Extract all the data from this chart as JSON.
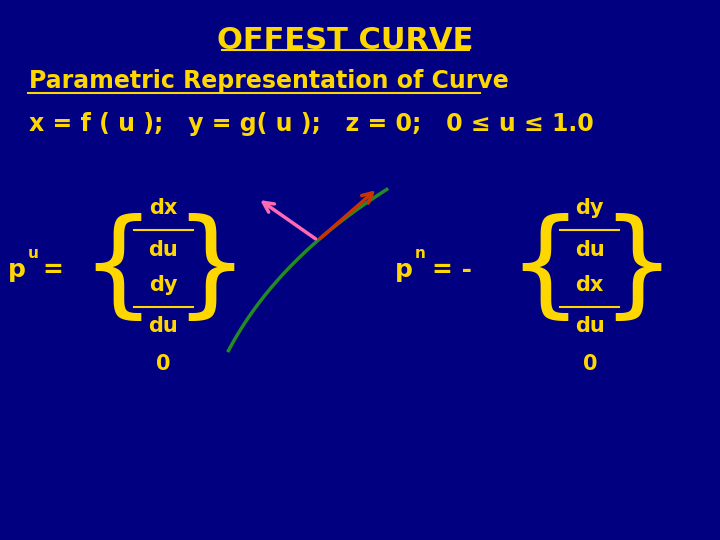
{
  "bg_color": "#000080",
  "title": "OFFEST CURVE",
  "title_color": "#FFD700",
  "title_fontsize": 22,
  "subtitle": "Parametric Representation of Curve",
  "subtitle_color": "#FFD700",
  "subtitle_fontsize": 17,
  "eq_line": "x = f ( u );   y = g( u );   z = 0;   0 ≤ u ≤ 1.0",
  "eq_color": "#FFD700",
  "eq_fontsize": 17,
  "bracket_color": "#FFD700",
  "text_color": "#FFD700",
  "arrow_tangent_color": "#CC3300",
  "arrow_normal_color": "#FF69B4",
  "curve_color": "#228B22"
}
